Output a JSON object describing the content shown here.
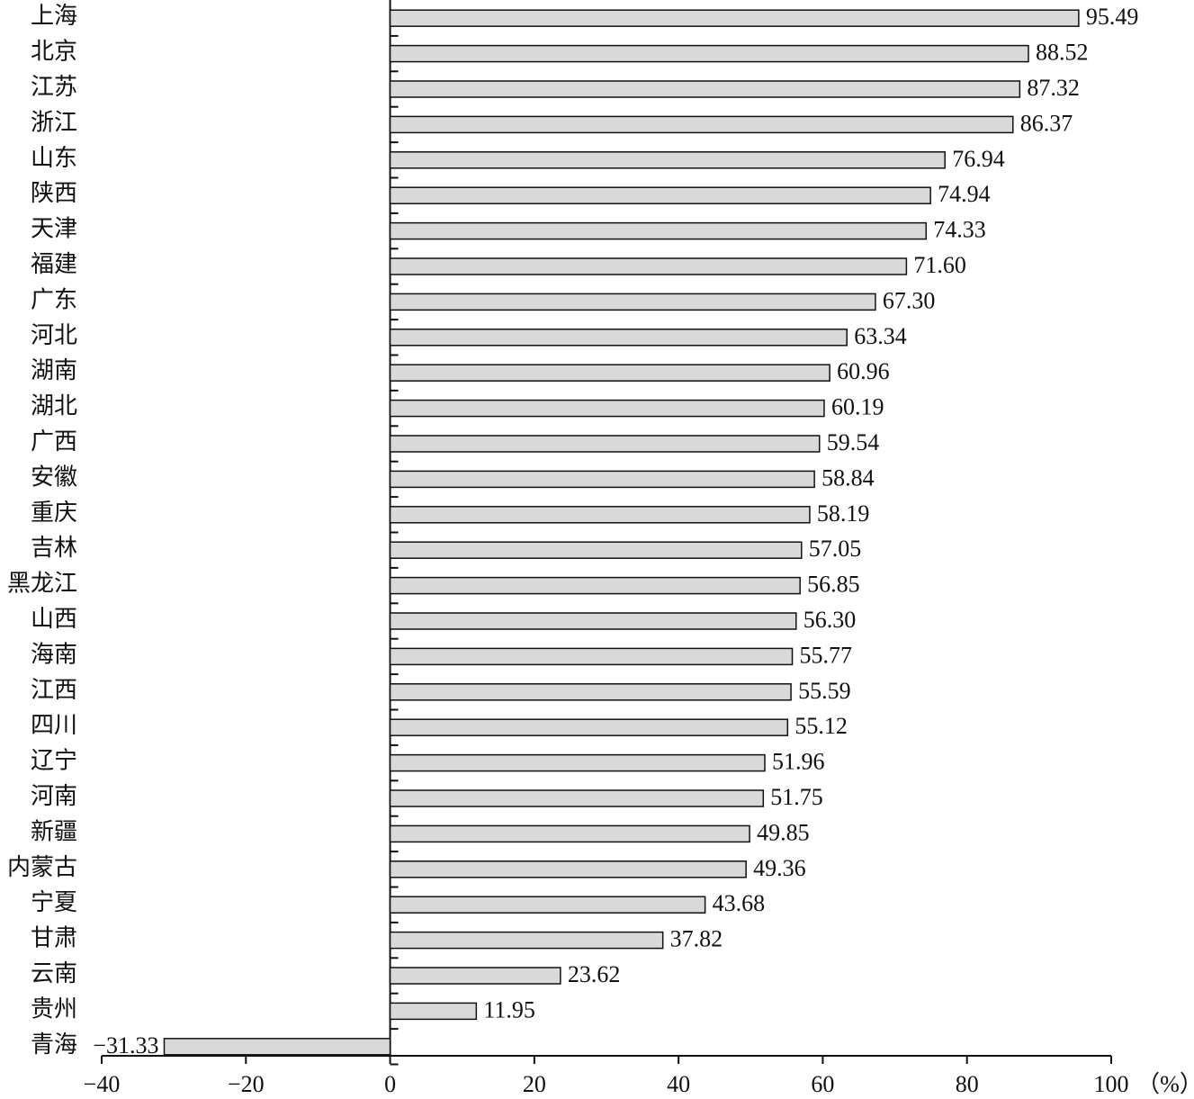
{
  "chart_data": {
    "type": "bar",
    "orientation": "horizontal",
    "categories": [
      "上海",
      "北京",
      "江苏",
      "浙江",
      "山东",
      "陕西",
      "天津",
      "福建",
      "广东",
      "河北",
      "湖南",
      "湖北",
      "广西",
      "安徽",
      "重庆",
      "吉林",
      "黑龙江",
      "山西",
      "海南",
      "江西",
      "四川",
      "辽宁",
      "河南",
      "新疆",
      "内蒙古",
      "宁夏",
      "甘肃",
      "云南",
      "贵州",
      "青海"
    ],
    "values": [
      95.49,
      88.52,
      87.32,
      86.37,
      76.94,
      74.94,
      74.33,
      71.6,
      67.3,
      63.34,
      60.96,
      60.19,
      59.54,
      58.84,
      58.19,
      57.05,
      56.85,
      56.3,
      55.77,
      55.59,
      55.12,
      51.96,
      51.75,
      49.85,
      49.36,
      43.68,
      37.82,
      23.62,
      11.95,
      -31.33
    ],
    "value_labels": [
      "95.49",
      "88.52",
      "87.32",
      "86.37",
      "76.94",
      "74.94",
      "74.33",
      "71.60",
      "67.30",
      "63.34",
      "60.96",
      "60.19",
      "59.54",
      "58.84",
      "58.19",
      "57.05",
      "56.85",
      "56.30",
      "55.77",
      "55.59",
      "55.12",
      "51.96",
      "51.75",
      "49.85",
      "49.36",
      "43.68",
      "37.82",
      "23.62",
      "11.95",
      "−31.33"
    ],
    "color": "#d9d9d9",
    "xlabel": "（%）",
    "xlim": [
      -40,
      100
    ],
    "xticks": [
      {
        "value": -40,
        "label": "−40"
      },
      {
        "value": -20,
        "label": "−20"
      },
      0,
      20,
      40,
      60,
      80,
      100
    ]
  }
}
